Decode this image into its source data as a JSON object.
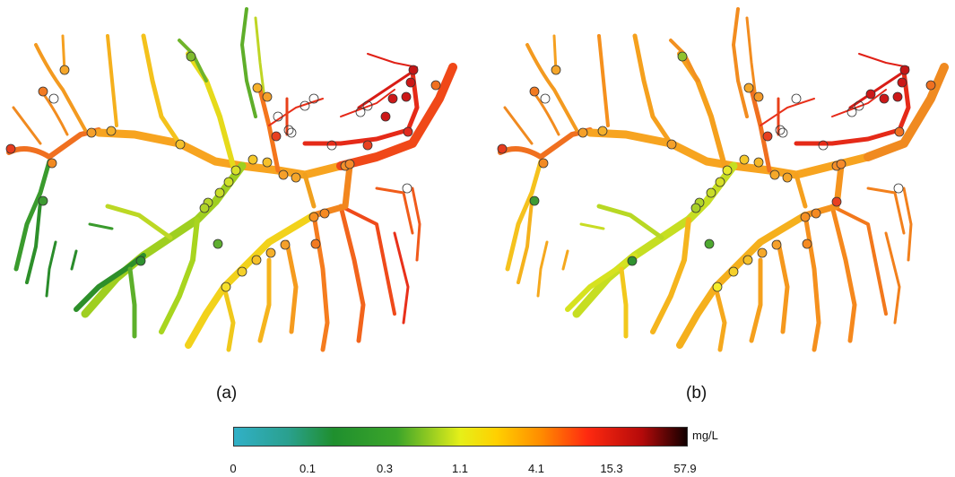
{
  "panels": [
    {
      "id": "a",
      "label": "(a)"
    },
    {
      "id": "b",
      "label": "(b)"
    }
  ],
  "legend": {
    "unit": "mg/L",
    "ticks": [
      "0",
      "0.1",
      "0.3",
      "1.1",
      "4.1",
      "15.3",
      "57.9"
    ],
    "colors": [
      "#31b0c7",
      "#1e8f2e",
      "#2f9e2a",
      "#d8e615",
      "#ffd300",
      "#ff8c00",
      "#ff1e10",
      "#1a0000"
    ]
  }
}
